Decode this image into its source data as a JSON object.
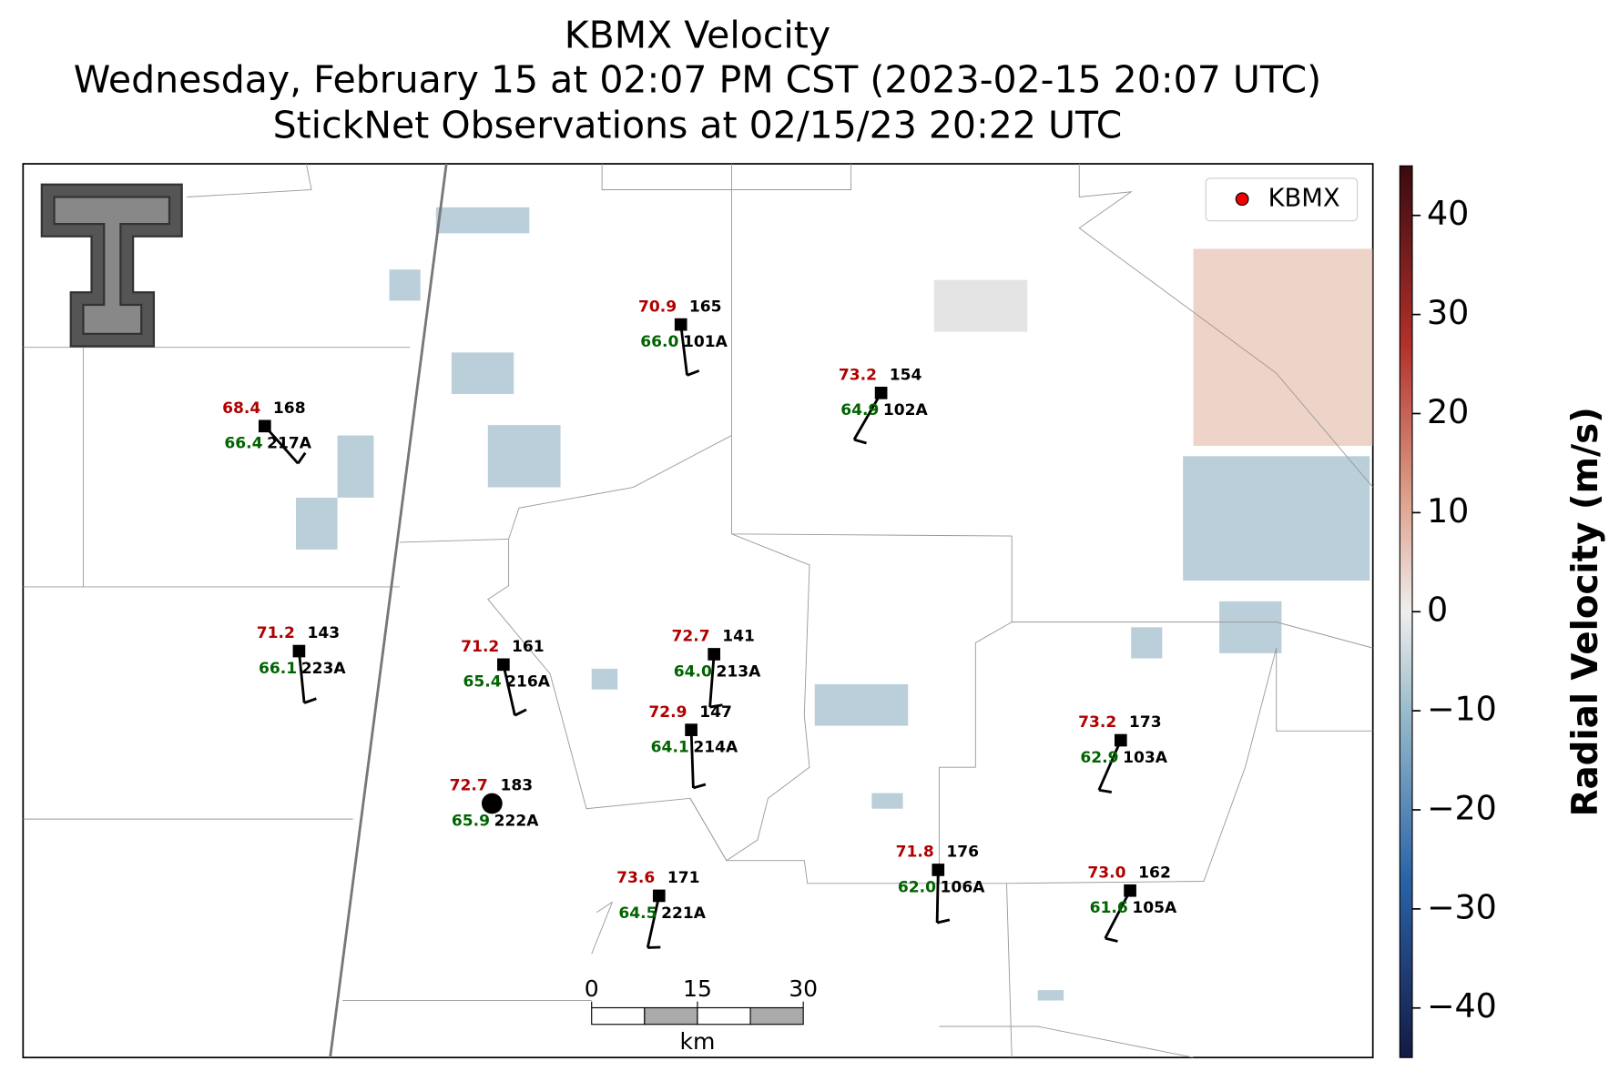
{
  "title": [
    "KBMX Velocity",
    "Wednesday, February 15 at 02:07 PM CST (2023-02-15 20:07 UTC)",
    "StickNet Observations at 02/15/23 20:22 UTC"
  ],
  "legend": "KBMX",
  "colorbar": {
    "label": "Radial Velocity (m/s)",
    "lim": [
      -45,
      45
    ],
    "ticks": [
      {
        "value": -40,
        "label": "−40"
      },
      {
        "value": -30,
        "label": "−30"
      },
      {
        "value": -20,
        "label": "−20"
      },
      {
        "value": -10,
        "label": "−10"
      },
      0,
      10,
      20,
      30,
      40
    ]
  },
  "scalebar": {
    "ticks": [
      0,
      15,
      30
    ],
    "unit": "km"
  },
  "stations": [
    {
      "id": "217A",
      "number": "168",
      "temperature": "68.4",
      "dewpoint": "66.4"
    },
    {
      "id": "101A",
      "number": "165",
      "temperature": "70.9",
      "dewpoint": "66.0"
    },
    {
      "id": "102A",
      "number": "154",
      "temperature": "73.2",
      "dewpoint": "64.9"
    },
    {
      "id": "223A",
      "number": "143",
      "temperature": "71.2",
      "dewpoint": "66.1"
    },
    {
      "id": "216A",
      "number": "161",
      "temperature": "71.2",
      "dewpoint": "65.4"
    },
    {
      "id": "213A",
      "number": "141",
      "temperature": "72.7",
      "dewpoint": "64.0"
    },
    {
      "id": "214A",
      "number": "147",
      "temperature": "72.9",
      "dewpoint": "64.1"
    },
    {
      "id": "222A",
      "number": "183",
      "temperature": "72.7",
      "dewpoint": "65.9"
    },
    {
      "id": "221A",
      "number": "171",
      "temperature": "73.6",
      "dewpoint": "64.5"
    },
    {
      "id": "106A",
      "number": "176",
      "temperature": "71.8",
      "dewpoint": "62.0"
    },
    {
      "id": "103A",
      "number": "173",
      "temperature": "73.2",
      "dewpoint": "62.9"
    },
    {
      "id": "105A",
      "number": "162",
      "temperature": "73.0",
      "dewpoint": "61.6"
    }
  ]
}
